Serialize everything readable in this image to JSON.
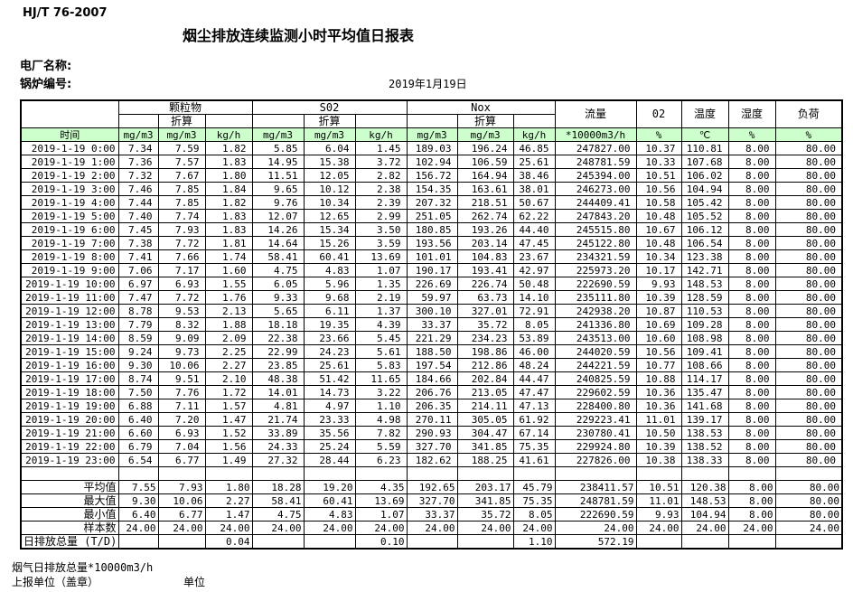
{
  "doc_code": "HJ/T  76-2007",
  "title": "烟尘排放连续监测小时平均值日报表",
  "plant_label": "电厂名称:",
  "boiler_label": "锅炉编号:",
  "date": "2019年1月19日",
  "colors": {
    "header_green": "#ccffcc"
  },
  "table": {
    "time_header": "时间",
    "discount_label": "折算",
    "groups": {
      "pm": "颗粒物",
      "so2": "S02",
      "nox": "Nox"
    },
    "single_headers": {
      "flow": "流量",
      "o2": "02",
      "temp": "温度",
      "humidity": "湿度",
      "load": "负荷"
    },
    "unit_headers": [
      "mg/m3",
      "mg/m3",
      "kg/h",
      "mg/m3",
      "mg/m3",
      "kg/h",
      "mg/m3",
      "mg/m3",
      "kg/h",
      "*10000m3/h",
      "%",
      "℃",
      "%",
      "%"
    ],
    "rows": [
      {
        "time": "2019-1-19 0:00",
        "values": [
          "7.34",
          "7.59",
          "1.82",
          "5.85",
          "6.04",
          "1.45",
          "189.03",
          "196.24",
          "46.85",
          "247827.00",
          "10.37",
          "110.81",
          "8.00",
          "80.00"
        ]
      },
      {
        "time": "2019-1-19 1:00",
        "values": [
          "7.36",
          "7.57",
          "1.83",
          "14.95",
          "15.38",
          "3.72",
          "102.94",
          "106.59",
          "25.61",
          "248781.59",
          "10.33",
          "107.68",
          "8.00",
          "80.00"
        ]
      },
      {
        "time": "2019-1-19 2:00",
        "values": [
          "7.32",
          "7.67",
          "1.80",
          "11.51",
          "12.05",
          "2.82",
          "156.72",
          "164.94",
          "38.46",
          "245394.00",
          "10.51",
          "106.02",
          "8.00",
          "80.00"
        ]
      },
      {
        "time": "2019-1-19 3:00",
        "values": [
          "7.46",
          "7.85",
          "1.84",
          "9.65",
          "10.12",
          "2.38",
          "154.35",
          "163.61",
          "38.01",
          "246273.00",
          "10.56",
          "104.94",
          "8.00",
          "80.00"
        ]
      },
      {
        "time": "2019-1-19 4:00",
        "values": [
          "7.44",
          "7.85",
          "1.82",
          "9.76",
          "10.34",
          "2.39",
          "207.32",
          "218.51",
          "50.67",
          "244409.41",
          "10.58",
          "105.42",
          "8.00",
          "80.00"
        ]
      },
      {
        "time": "2019-1-19 5:00",
        "values": [
          "7.40",
          "7.74",
          "1.83",
          "12.07",
          "12.65",
          "2.99",
          "251.05",
          "262.74",
          "62.22",
          "247843.20",
          "10.48",
          "105.52",
          "8.00",
          "80.00"
        ]
      },
      {
        "time": "2019-1-19 6:00",
        "values": [
          "7.45",
          "7.93",
          "1.83",
          "14.26",
          "15.34",
          "3.50",
          "180.85",
          "193.26",
          "44.40",
          "245515.80",
          "10.67",
          "106.12",
          "8.00",
          "80.00"
        ]
      },
      {
        "time": "2019-1-19 7:00",
        "values": [
          "7.38",
          "7.72",
          "1.81",
          "14.64",
          "15.26",
          "3.59",
          "193.56",
          "203.14",
          "47.45",
          "245122.80",
          "10.48",
          "106.54",
          "8.00",
          "80.00"
        ]
      },
      {
        "time": "2019-1-19 8:00",
        "values": [
          "7.41",
          "7.66",
          "1.74",
          "58.41",
          "60.41",
          "13.69",
          "101.01",
          "104.83",
          "23.67",
          "234321.59",
          "10.34",
          "123.38",
          "8.00",
          "80.00"
        ]
      },
      {
        "time": "2019-1-19 9:00",
        "values": [
          "7.06",
          "7.17",
          "1.60",
          "4.75",
          "4.83",
          "1.07",
          "190.17",
          "193.41",
          "42.97",
          "225973.20",
          "10.17",
          "142.71",
          "8.00",
          "80.00"
        ]
      },
      {
        "time": "2019-1-19 10:00",
        "values": [
          "6.97",
          "6.93",
          "1.55",
          "6.05",
          "5.96",
          "1.35",
          "226.69",
          "226.74",
          "50.48",
          "222690.59",
          "9.93",
          "148.53",
          "8.00",
          "80.00"
        ]
      },
      {
        "time": "2019-1-19 11:00",
        "values": [
          "7.47",
          "7.72",
          "1.76",
          "9.33",
          "9.68",
          "2.19",
          "59.97",
          "63.73",
          "14.10",
          "235111.80",
          "10.39",
          "128.59",
          "8.00",
          "80.00"
        ]
      },
      {
        "time": "2019-1-19 12:00",
        "values": [
          "8.78",
          "9.53",
          "2.13",
          "5.65",
          "6.11",
          "1.37",
          "300.10",
          "327.01",
          "72.91",
          "242938.20",
          "10.87",
          "110.53",
          "8.00",
          "80.00"
        ]
      },
      {
        "time": "2019-1-19 13:00",
        "values": [
          "7.79",
          "8.32",
          "1.88",
          "18.18",
          "19.35",
          "4.39",
          "33.37",
          "35.72",
          "8.05",
          "241336.80",
          "10.69",
          "109.28",
          "8.00",
          "80.00"
        ]
      },
      {
        "time": "2019-1-19 14:00",
        "values": [
          "8.59",
          "9.09",
          "2.09",
          "22.38",
          "23.66",
          "5.45",
          "221.29",
          "234.23",
          "53.89",
          "243513.00",
          "10.60",
          "108.98",
          "8.00",
          "80.00"
        ]
      },
      {
        "time": "2019-1-19 15:00",
        "values": [
          "9.24",
          "9.73",
          "2.25",
          "22.99",
          "24.23",
          "5.61",
          "188.50",
          "198.86",
          "46.00",
          "244020.59",
          "10.56",
          "109.41",
          "8.00",
          "80.00"
        ]
      },
      {
        "time": "2019-1-19 16:00",
        "values": [
          "9.30",
          "10.06",
          "2.27",
          "23.85",
          "25.61",
          "5.83",
          "197.54",
          "212.86",
          "48.24",
          "244221.59",
          "10.77",
          "108.66",
          "8.00",
          "80.00"
        ]
      },
      {
        "time": "2019-1-19 17:00",
        "values": [
          "8.74",
          "9.51",
          "2.10",
          "48.38",
          "51.42",
          "11.65",
          "184.66",
          "202.84",
          "44.47",
          "240825.59",
          "10.88",
          "114.17",
          "8.00",
          "80.00"
        ]
      },
      {
        "time": "2019-1-19 18:00",
        "values": [
          "7.50",
          "7.76",
          "1.72",
          "14.01",
          "14.73",
          "3.22",
          "206.76",
          "213.05",
          "47.47",
          "229602.59",
          "10.36",
          "135.47",
          "8.00",
          "80.00"
        ]
      },
      {
        "time": "2019-1-19 19:00",
        "values": [
          "6.88",
          "7.11",
          "1.57",
          "4.81",
          "4.97",
          "1.10",
          "206.35",
          "214.11",
          "47.13",
          "228400.80",
          "10.36",
          "141.68",
          "8.00",
          "80.00"
        ]
      },
      {
        "time": "2019-1-19 20:00",
        "values": [
          "6.40",
          "7.20",
          "1.47",
          "21.74",
          "23.33",
          "4.98",
          "270.11",
          "305.05",
          "61.92",
          "229223.41",
          "11.01",
          "139.17",
          "8.00",
          "80.00"
        ]
      },
      {
        "time": "2019-1-19 21:00",
        "values": [
          "6.60",
          "6.93",
          "1.52",
          "33.89",
          "35.56",
          "7.82",
          "290.93",
          "304.47",
          "67.14",
          "230780.41",
          "10.50",
          "138.53",
          "8.00",
          "80.00"
        ]
      },
      {
        "time": "2019-1-19 22:00",
        "values": [
          "6.79",
          "7.04",
          "1.56",
          "24.33",
          "25.24",
          "5.59",
          "327.70",
          "341.85",
          "75.35",
          "229924.80",
          "10.39",
          "138.52",
          "8.00",
          "80.00"
        ]
      },
      {
        "time": "2019-1-19 23:00",
        "values": [
          "6.54",
          "6.77",
          "1.49",
          "27.32",
          "28.44",
          "6.23",
          "182.62",
          "188.25",
          "41.61",
          "227826.00",
          "10.38",
          "138.33",
          "8.00",
          "80.00"
        ]
      }
    ],
    "summary": [
      {
        "label": "平均值",
        "values": [
          "7.55",
          "7.93",
          "1.80",
          "18.28",
          "19.20",
          "4.35",
          "192.65",
          "203.17",
          "45.79",
          "238411.57",
          "10.51",
          "120.38",
          "8.00",
          "80.00"
        ]
      },
      {
        "label": "最大值",
        "values": [
          "9.30",
          "10.06",
          "2.27",
          "58.41",
          "60.41",
          "13.69",
          "327.70",
          "341.85",
          "75.35",
          "248781.59",
          "11.01",
          "148.53",
          "8.00",
          "80.00"
        ]
      },
      {
        "label": "最小值",
        "values": [
          "6.40",
          "6.77",
          "1.47",
          "4.75",
          "4.83",
          "1.07",
          "33.37",
          "35.72",
          "8.05",
          "222690.59",
          "9.93",
          "104.94",
          "8.00",
          "80.00"
        ]
      },
      {
        "label": "样本数",
        "values": [
          "24.00",
          "24.00",
          "24.00",
          "24.00",
          "24.00",
          "24.00",
          "24.00",
          "24.00",
          "24.00",
          "24.00",
          "24.00",
          "24.00",
          "24.00",
          "24.00"
        ]
      }
    ],
    "total_row": {
      "label": "日排放总量 (T/D)",
      "values": [
        "",
        "",
        "0.04",
        "",
        "",
        "0.10",
        "",
        "",
        "1.10",
        "572.19",
        "",
        "",
        "",
        ""
      ]
    }
  },
  "footer": {
    "flue_total": "烟气日排放总量*10000m3/h",
    "report_unit": "上报单位（盖章）",
    "unit": "单位"
  }
}
